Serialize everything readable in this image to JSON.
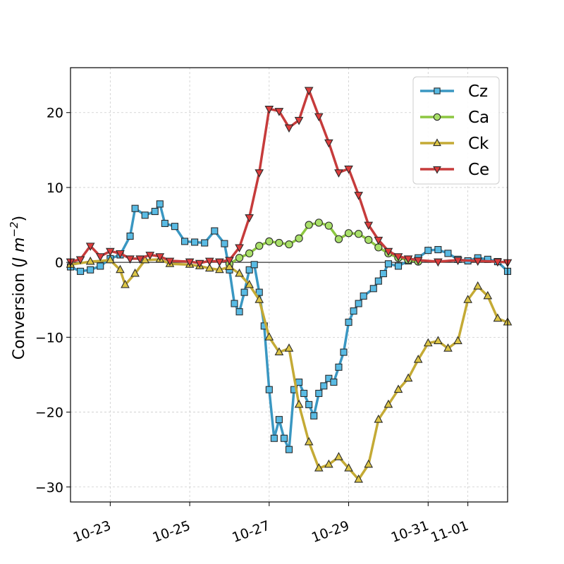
{
  "chart_data": {
    "type": "line",
    "x_axis_type": "date",
    "xlim": [
      "2024-10-22",
      "2024-11-02"
    ],
    "ylim": [
      -32,
      26
    ],
    "ylabel_main": "Conversion (",
    "ylabel_math": "J m",
    "ylabel_exp": "−2",
    "ylabel_close": ")",
    "xlabel": "",
    "grid": true,
    "legend_position": "upper right",
    "x_ticks": [
      {
        "date": "2024-10-23",
        "label": "10-23"
      },
      {
        "date": "2024-10-25",
        "label": "10-25"
      },
      {
        "date": "2024-10-27",
        "label": "10-27"
      },
      {
        "date": "2024-10-29",
        "label": "10-29"
      },
      {
        "date": "2024-10-31",
        "label": "10-31"
      },
      {
        "date": "2024-11-01",
        "label": "11-01"
      }
    ],
    "y_ticks": [
      {
        "value": 20,
        "label": "20"
      },
      {
        "value": 10,
        "label": "10"
      },
      {
        "value": 0,
        "label": "0"
      },
      {
        "value": -10,
        "label": "−10"
      },
      {
        "value": -20,
        "label": "−20"
      },
      {
        "value": -30,
        "label": "−30"
      }
    ],
    "series": [
      {
        "name": "Cz",
        "line_color": "#3a97c2",
        "marker_fill": "#59bbe4",
        "marker": "square",
        "points": [
          [
            "2024-10-22 00:00",
            -0.6
          ],
          [
            "2024-10-22 06:00",
            -1.2
          ],
          [
            "2024-10-22 12:00",
            -1.0
          ],
          [
            "2024-10-22 18:00",
            -0.5
          ],
          [
            "2024-10-23 00:00",
            0.5
          ],
          [
            "2024-10-23 06:00",
            1.0
          ],
          [
            "2024-10-23 12:00",
            3.5
          ],
          [
            "2024-10-23 15:00",
            7.2
          ],
          [
            "2024-10-23 21:00",
            6.3
          ],
          [
            "2024-10-24 03:00",
            6.8
          ],
          [
            "2024-10-24 06:00",
            7.8
          ],
          [
            "2024-10-24 09:00",
            5.2
          ],
          [
            "2024-10-24 15:00",
            4.8
          ],
          [
            "2024-10-24 21:00",
            2.8
          ],
          [
            "2024-10-25 03:00",
            2.7
          ],
          [
            "2024-10-25 09:00",
            2.6
          ],
          [
            "2024-10-25 15:00",
            4.2
          ],
          [
            "2024-10-25 21:00",
            2.5
          ],
          [
            "2024-10-26 00:00",
            -1.0
          ],
          [
            "2024-10-26 03:00",
            -5.5
          ],
          [
            "2024-10-26 06:00",
            -6.6
          ],
          [
            "2024-10-26 09:00",
            -4.0
          ],
          [
            "2024-10-26 12:00",
            -1.0
          ],
          [
            "2024-10-26 15:00",
            -0.3
          ],
          [
            "2024-10-26 18:00",
            -4.0
          ],
          [
            "2024-10-26 21:00",
            -8.5
          ],
          [
            "2024-10-27 00:00",
            -17.0
          ],
          [
            "2024-10-27 03:00",
            -23.5
          ],
          [
            "2024-10-27 06:00",
            -21.0
          ],
          [
            "2024-10-27 09:00",
            -23.5
          ],
          [
            "2024-10-27 12:00",
            -25.0
          ],
          [
            "2024-10-27 15:00",
            -17.0
          ],
          [
            "2024-10-27 18:00",
            -16.0
          ],
          [
            "2024-10-27 21:00",
            -17.5
          ],
          [
            "2024-10-28 00:00",
            -19.0
          ],
          [
            "2024-10-28 03:00",
            -20.5
          ],
          [
            "2024-10-28 06:00",
            -17.5
          ],
          [
            "2024-10-28 09:00",
            -16.5
          ],
          [
            "2024-10-28 12:00",
            -15.5
          ],
          [
            "2024-10-28 15:00",
            -16.0
          ],
          [
            "2024-10-28 18:00",
            -14.0
          ],
          [
            "2024-10-28 21:00",
            -12.0
          ],
          [
            "2024-10-29 00:00",
            -8.0
          ],
          [
            "2024-10-29 03:00",
            -6.5
          ],
          [
            "2024-10-29 06:00",
            -5.5
          ],
          [
            "2024-10-29 09:00",
            -4.5
          ],
          [
            "2024-10-29 15:00",
            -3.5
          ],
          [
            "2024-10-29 18:00",
            -2.5
          ],
          [
            "2024-10-29 21:00",
            -1.5
          ],
          [
            "2024-10-30 00:00",
            -0.2
          ],
          [
            "2024-10-30 06:00",
            -0.5
          ],
          [
            "2024-10-30 12:00",
            0.2
          ],
          [
            "2024-10-30 18:00",
            0.6
          ],
          [
            "2024-10-31 00:00",
            1.6
          ],
          [
            "2024-10-31 06:00",
            1.7
          ],
          [
            "2024-10-31 12:00",
            1.2
          ],
          [
            "2024-10-31 18:00",
            0.4
          ],
          [
            "2024-11-01 00:00",
            0.2
          ],
          [
            "2024-11-01 06:00",
            0.6
          ],
          [
            "2024-11-01 12:00",
            0.4
          ],
          [
            "2024-11-01 18:00",
            0.1
          ],
          [
            "2024-11-02 00:00",
            -1.2
          ]
        ]
      },
      {
        "name": "Ca",
        "line_color": "#8cc640",
        "marker_fill": "#a9e06a",
        "marker": "circle",
        "points": [
          [
            "2024-10-26 00:00",
            -0.2
          ],
          [
            "2024-10-26 06:00",
            0.6
          ],
          [
            "2024-10-26 12:00",
            1.2
          ],
          [
            "2024-10-26 18:00",
            2.2
          ],
          [
            "2024-10-27 00:00",
            2.8
          ],
          [
            "2024-10-27 06:00",
            2.6
          ],
          [
            "2024-10-27 12:00",
            2.4
          ],
          [
            "2024-10-27 18:00",
            3.2
          ],
          [
            "2024-10-28 00:00",
            5.0
          ],
          [
            "2024-10-28 06:00",
            5.3
          ],
          [
            "2024-10-28 12:00",
            4.9
          ],
          [
            "2024-10-28 18:00",
            3.1
          ],
          [
            "2024-10-29 00:00",
            3.9
          ],
          [
            "2024-10-29 06:00",
            3.8
          ],
          [
            "2024-10-29 12:00",
            3.0
          ],
          [
            "2024-10-29 18:00",
            2.0
          ],
          [
            "2024-10-30 00:00",
            1.2
          ],
          [
            "2024-10-30 06:00",
            0.6
          ],
          [
            "2024-10-30 12:00",
            0.3
          ],
          [
            "2024-10-30 18:00",
            0.1
          ]
        ]
      },
      {
        "name": "Ck",
        "line_color": "#c4aa35",
        "marker_fill": "#dcc545",
        "marker": "triangle-up",
        "points": [
          [
            "2024-10-22 00:00",
            -0.3
          ],
          [
            "2024-10-22 12:00",
            0.1
          ],
          [
            "2024-10-23 00:00",
            0.3
          ],
          [
            "2024-10-23 06:00",
            -1.0
          ],
          [
            "2024-10-23 09:00",
            -3.0
          ],
          [
            "2024-10-23 15:00",
            -1.5
          ],
          [
            "2024-10-23 21:00",
            0.3
          ],
          [
            "2024-10-24 06:00",
            0.4
          ],
          [
            "2024-10-24 12:00",
            -0.2
          ],
          [
            "2024-10-25 00:00",
            -0.3
          ],
          [
            "2024-10-25 06:00",
            -0.5
          ],
          [
            "2024-10-25 12:00",
            -0.8
          ],
          [
            "2024-10-25 18:00",
            -1.0
          ],
          [
            "2024-10-26 00:00",
            -0.6
          ],
          [
            "2024-10-26 06:00",
            -1.5
          ],
          [
            "2024-10-26 12:00",
            -3.0
          ],
          [
            "2024-10-26 18:00",
            -5.0
          ],
          [
            "2024-10-27 00:00",
            -10.0
          ],
          [
            "2024-10-27 06:00",
            -12.0
          ],
          [
            "2024-10-27 12:00",
            -11.5
          ],
          [
            "2024-10-27 18:00",
            -19.0
          ],
          [
            "2024-10-28 00:00",
            -24.0
          ],
          [
            "2024-10-28 06:00",
            -27.5
          ],
          [
            "2024-10-28 12:00",
            -27.0
          ],
          [
            "2024-10-28 18:00",
            -26.0
          ],
          [
            "2024-10-29 00:00",
            -27.5
          ],
          [
            "2024-10-29 06:00",
            -29.0
          ],
          [
            "2024-10-29 12:00",
            -27.0
          ],
          [
            "2024-10-29 18:00",
            -21.0
          ],
          [
            "2024-10-30 00:00",
            -19.0
          ],
          [
            "2024-10-30 06:00",
            -17.0
          ],
          [
            "2024-10-30 12:00",
            -15.5
          ],
          [
            "2024-10-30 18:00",
            -13.0
          ],
          [
            "2024-10-31 00:00",
            -10.8
          ],
          [
            "2024-10-31 06:00",
            -10.5
          ],
          [
            "2024-10-31 12:00",
            -11.5
          ],
          [
            "2024-10-31 18:00",
            -10.5
          ],
          [
            "2024-11-01 00:00",
            -5.0
          ],
          [
            "2024-11-01 06:00",
            -3.2
          ],
          [
            "2024-11-01 12:00",
            -4.5
          ],
          [
            "2024-11-01 18:00",
            -7.5
          ],
          [
            "2024-11-02 00:00",
            -8.0
          ]
        ]
      },
      {
        "name": "Ce",
        "line_color": "#c63b3b",
        "marker_fill": "#dd3c3c",
        "marker": "triangle-down",
        "points": [
          [
            "2024-10-22 00:00",
            0.1
          ],
          [
            "2024-10-22 06:00",
            0.4
          ],
          [
            "2024-10-22 12:00",
            2.2
          ],
          [
            "2024-10-22 18:00",
            0.8
          ],
          [
            "2024-10-23 00:00",
            1.5
          ],
          [
            "2024-10-23 06:00",
            1.2
          ],
          [
            "2024-10-23 12:00",
            0.5
          ],
          [
            "2024-10-23 18:00",
            0.5
          ],
          [
            "2024-10-24 00:00",
            1.0
          ],
          [
            "2024-10-24 06:00",
            0.8
          ],
          [
            "2024-10-24 12:00",
            0.2
          ],
          [
            "2024-10-25 00:00",
            0.1
          ],
          [
            "2024-10-25 06:00",
            -0.1
          ],
          [
            "2024-10-25 12:00",
            0.2
          ],
          [
            "2024-10-25 18:00",
            0.1
          ],
          [
            "2024-10-26 00:00",
            0.3
          ],
          [
            "2024-10-26 06:00",
            2.0
          ],
          [
            "2024-10-26 12:00",
            6.0
          ],
          [
            "2024-10-26 18:00",
            12.0
          ],
          [
            "2024-10-27 00:00",
            20.5
          ],
          [
            "2024-10-27 06:00",
            20.2
          ],
          [
            "2024-10-27 12:00",
            18.0
          ],
          [
            "2024-10-27 18:00",
            19.0
          ],
          [
            "2024-10-28 00:00",
            23.0
          ],
          [
            "2024-10-28 06:00",
            19.5
          ],
          [
            "2024-10-28 12:00",
            16.0
          ],
          [
            "2024-10-28 18:00",
            12.0
          ],
          [
            "2024-10-29 00:00",
            12.5
          ],
          [
            "2024-10-29 06:00",
            9.0
          ],
          [
            "2024-10-29 12:00",
            5.0
          ],
          [
            "2024-10-29 18:00",
            3.0
          ],
          [
            "2024-10-30 00:00",
            1.5
          ],
          [
            "2024-10-30 06:00",
            0.8
          ],
          [
            "2024-10-30 12:00",
            0.5
          ],
          [
            "2024-10-30 18:00",
            0.3
          ],
          [
            "2024-10-31 06:00",
            0.1
          ],
          [
            "2024-10-31 18:00",
            0.3
          ],
          [
            "2024-11-01 06:00",
            0.2
          ],
          [
            "2024-11-01 18:00",
            0.1
          ],
          [
            "2024-11-02 00:00",
            0.0
          ]
        ]
      }
    ]
  }
}
